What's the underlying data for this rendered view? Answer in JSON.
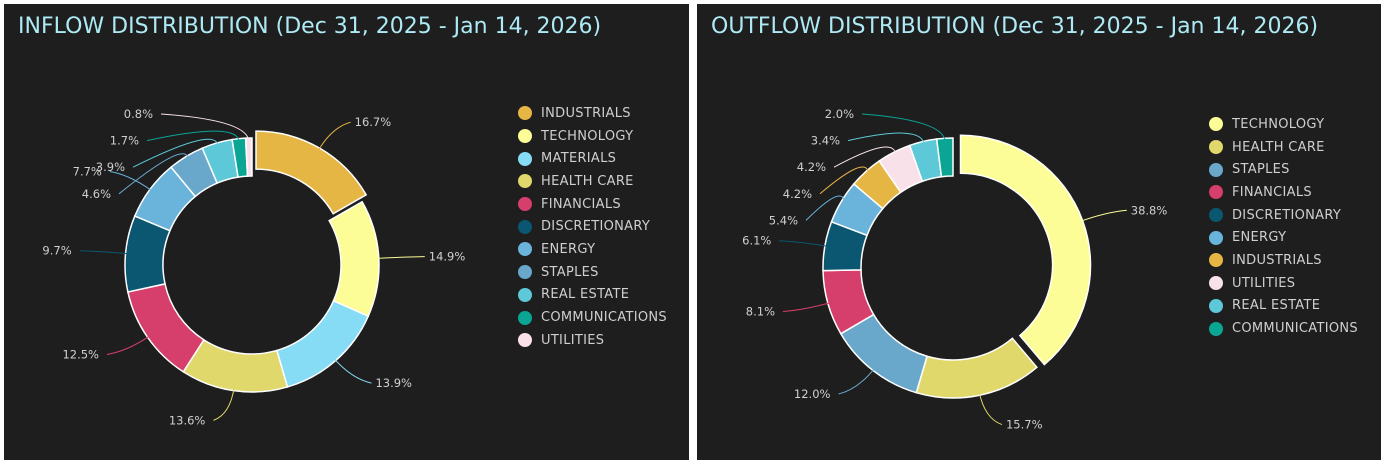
{
  "colors": {
    "INDUSTRIALS": "#e6b645",
    "TECHNOLOGY": "#fdfd98",
    "MATERIALS": "#87dcf5",
    "HEALTH CARE": "#e0d86a",
    "FINANCIALS": "#d63f6b",
    "DISCRETIONARY": "#0b5671",
    "ENERGY": "#6ab4dc",
    "STAPLES": "#6aa8cb",
    "REAL ESTATE": "#5dc8d8",
    "COMMUNICATIONS": "#0ba594",
    "UTILITIES": "#f8e1e8"
  },
  "chart_data": [
    {
      "type": "pie",
      "title": "INFLOW DISTRIBUTION (Dec 31, 2025 - Jan 14, 2026)",
      "legend": "right",
      "unit": "%",
      "categories": [
        "INDUSTRIALS",
        "TECHNOLOGY",
        "MATERIALS",
        "HEALTH CARE",
        "FINANCIALS",
        "DISCRETIONARY",
        "ENERGY",
        "STAPLES",
        "REAL ESTATE",
        "COMMUNICATIONS",
        "UTILITIES"
      ],
      "values": [
        16.7,
        14.9,
        13.9,
        13.6,
        12.5,
        9.7,
        7.7,
        4.6,
        3.9,
        1.7,
        0.8
      ],
      "labels": [
        "16.7%",
        "14.9%",
        "13.9%",
        "13.6%",
        "12.5%",
        "9.7%",
        "7.7%",
        "4.6%",
        "3.9%",
        "1.7%",
        "0.8%"
      ]
    },
    {
      "type": "pie",
      "title": "OUTFLOW DISTRIBUTION (Dec 31, 2025 - Jan 14, 2026)",
      "legend": "right",
      "unit": "%",
      "categories": [
        "TECHNOLOGY",
        "HEALTH CARE",
        "STAPLES",
        "FINANCIALS",
        "DISCRETIONARY",
        "ENERGY",
        "INDUSTRIALS",
        "UTILITIES",
        "REAL ESTATE",
        "COMMUNICATIONS"
      ],
      "values": [
        38.8,
        15.7,
        12.0,
        8.1,
        6.1,
        5.4,
        4.2,
        4.2,
        3.4,
        2.0
      ],
      "labels": [
        "38.8%",
        "15.7%",
        "12.0%",
        "8.1%",
        "6.1%",
        "5.4%",
        "4.2%",
        "4.2%",
        "3.4%",
        "2.0%"
      ]
    }
  ]
}
